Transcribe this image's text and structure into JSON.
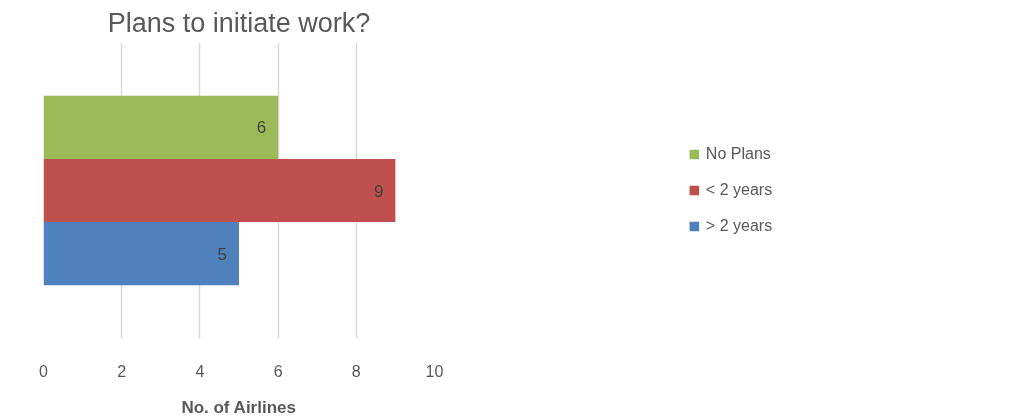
{
  "chart_data": {
    "type": "bar",
    "orientation": "horizontal",
    "title": "Plans to initiate work?",
    "xlabel": "No. of Airlines",
    "categories": [
      null
    ],
    "series": [
      {
        "name": "No Plans",
        "color": "#9bbb59",
        "values": [
          6
        ]
      },
      {
        "name": "< 2 years",
        "color": "#c0504d",
        "values": [
          9
        ]
      },
      {
        "name": "> 2 years",
        "color": "#4f81bd",
        "values": [
          5
        ]
      }
    ],
    "xlim": [
      0,
      10
    ],
    "xticks": [
      0,
      2,
      4,
      6,
      8,
      10
    ],
    "grid": "x",
    "legend": "right",
    "data_labels": true
  }
}
